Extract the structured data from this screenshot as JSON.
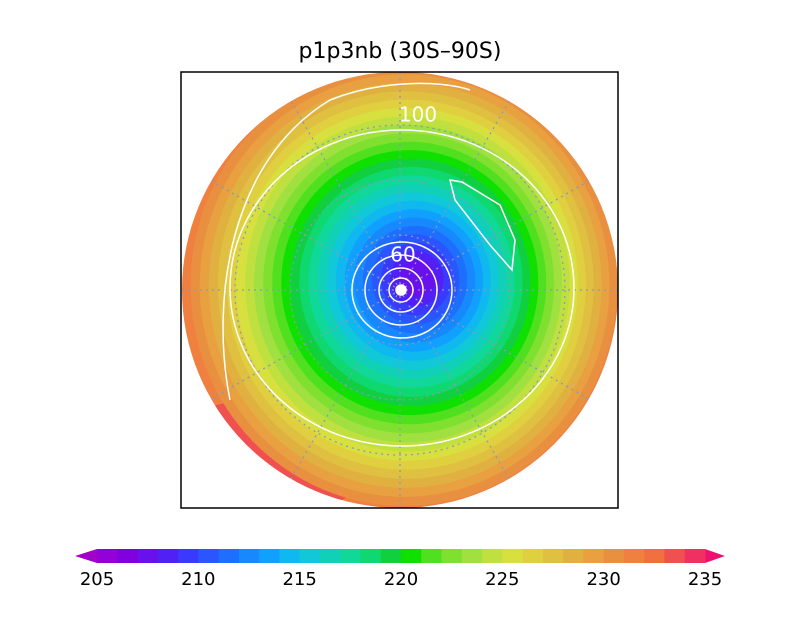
{
  "title": "p1p3nb (30S–90S)",
  "contour_labels": [
    "100",
    "60"
  ],
  "colorbar": {
    "ticks": [
      "205",
      "210",
      "215",
      "220",
      "225",
      "230",
      "235"
    ],
    "colors": [
      "#a000c8",
      "#9400d8",
      "#8000e0",
      "#6a10ec",
      "#5020f4",
      "#3a3aff",
      "#2a55ff",
      "#1e6eff",
      "#1888ff",
      "#10a0ff",
      "#10b8f0",
      "#10c8d8",
      "#10d0b8",
      "#10d898",
      "#10d870",
      "#10d040",
      "#10e000",
      "#50e020",
      "#80e030",
      "#a0e040",
      "#c0e040",
      "#d8e040",
      "#e0d040",
      "#e0c040",
      "#e0b040",
      "#e8a040",
      "#e89040",
      "#f08040",
      "#f07040",
      "#f05050",
      "#f03060",
      "#ee1070"
    ]
  }
}
